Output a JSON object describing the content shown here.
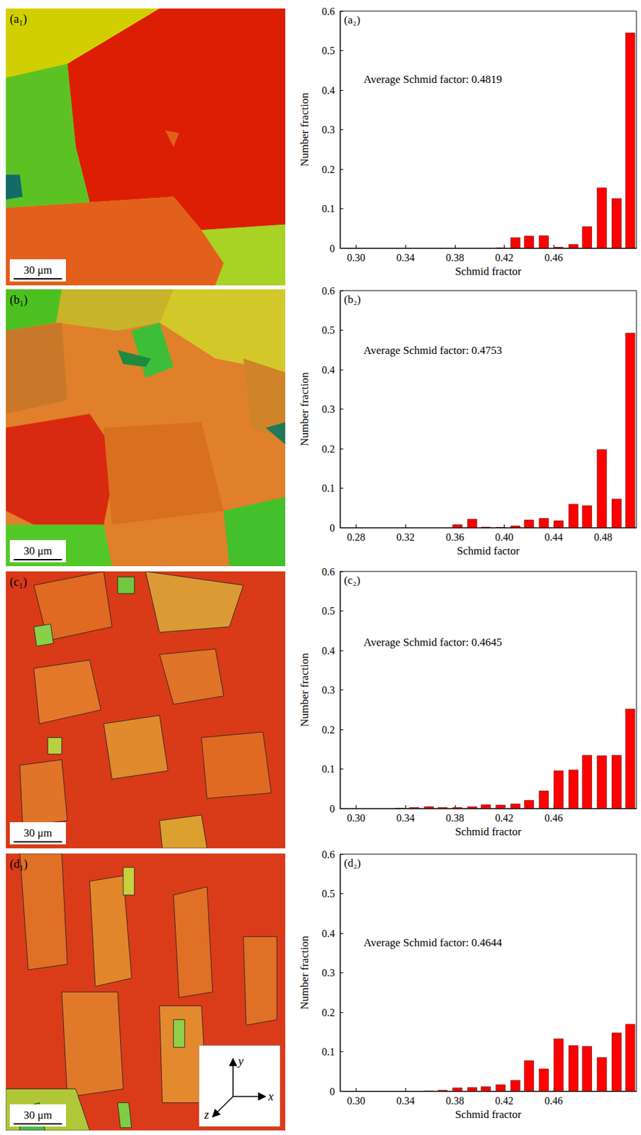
{
  "maps": [
    {
      "label": "(a₁)",
      "scale_bar": "30 μm"
    },
    {
      "label": "(b₁)",
      "scale_bar": "30 μm"
    },
    {
      "label": "(c₁)",
      "scale_bar": "30 μm"
    },
    {
      "label": "(d₁)",
      "scale_bar": "30 μm"
    }
  ],
  "axes_triad": [
    "x",
    "y",
    "z"
  ],
  "chart_data": [
    {
      "type": "bar",
      "title": "(a₂)",
      "annotations": [
        "Average Schmid factor: 0.4819"
      ],
      "x_label": "Schmid fractor",
      "y_label": "Number fraction",
      "x": [
        0.417,
        0.429,
        0.44,
        0.452,
        0.464,
        0.476,
        0.487,
        0.499,
        0.511,
        0.522
      ],
      "values": [
        0.001,
        0.027,
        0.031,
        0.032,
        0.003,
        0.01,
        0.055,
        0.153,
        0.126,
        0.545
      ],
      "color": "#ff0000",
      "xlim": [
        0.287,
        0.527
      ],
      "xticks": [
        {
          "value": 0.3,
          "label": "0.30"
        },
        0.34,
        0.38,
        0.42,
        0.46
      ],
      "ylim": [
        0,
        0.6
      ],
      "yticks": [
        0,
        0.1,
        0.2,
        0.3,
        0.4,
        0.5,
        0.6
      ],
      "grid": false
    },
    {
      "type": "bar",
      "title": "(b₂)",
      "annotations": [
        "Average Schmid factor: 0.4753"
      ],
      "x_label": "Schmid factor",
      "y_label": "Number fraction",
      "x": [
        0.362,
        0.374,
        0.385,
        0.397,
        0.409,
        0.42,
        0.432,
        0.444,
        0.456,
        0.467,
        0.479,
        0.491,
        0.502
      ],
      "values": [
        0.008,
        0.022,
        0.002,
        0.001,
        0.005,
        0.02,
        0.024,
        0.018,
        0.06,
        0.056,
        0.198,
        0.073,
        0.493
      ],
      "color": "#ff0000",
      "xlim": [
        0.267,
        0.507
      ],
      "xticks": [
        0.28,
        0.32,
        0.36,
        {
          "value": 0.4,
          "label": "0.40"
        },
        0.44,
        0.48
      ],
      "ylim": [
        0,
        0.6
      ],
      "yticks": [
        0,
        0.1,
        0.2,
        0.3,
        0.4,
        0.5,
        0.6
      ],
      "grid": false
    },
    {
      "type": "bar",
      "title": "(c₂)",
      "annotations": [
        "Average Schmid factor: 0.4645"
      ],
      "x_label": "Schmid fractor",
      "y_label": "Number fraction",
      "x": [
        0.335,
        0.347,
        0.359,
        0.37,
        0.382,
        0.394,
        0.405,
        0.417,
        0.429,
        0.44,
        0.452,
        0.464,
        0.476,
        0.487,
        0.499,
        0.511,
        0.522
      ],
      "values": [
        0.001,
        0.003,
        0.005,
        0.003,
        0.003,
        0.005,
        0.01,
        0.009,
        0.012,
        0.021,
        0.045,
        0.096,
        0.098,
        0.135,
        0.134,
        0.135,
        0.252
      ],
      "color": "#ff0000",
      "xlim": [
        0.287,
        0.527
      ],
      "xticks": [
        {
          "value": 0.3,
          "label": "0.30"
        },
        0.34,
        0.38,
        0.42,
        0.46
      ],
      "ylim": [
        0,
        0.6
      ],
      "yticks": [
        0,
        0.1,
        0.2,
        0.3,
        0.4,
        0.5,
        0.6
      ],
      "grid": false
    },
    {
      "type": "bar",
      "title": "(d₂)",
      "annotations": [
        "Average Schmid factor: 0.4644"
      ],
      "x_label": "Schmid fractor",
      "y_label": "Number fraction",
      "x": [
        0.359,
        0.37,
        0.382,
        0.394,
        0.405,
        0.417,
        0.429,
        0.44,
        0.452,
        0.464,
        0.476,
        0.487,
        0.499,
        0.511,
        0.522
      ],
      "values": [
        0.001,
        0.003,
        0.009,
        0.01,
        0.012,
        0.017,
        0.028,
        0.078,
        0.057,
        0.133,
        0.116,
        0.114,
        0.086,
        0.148,
        0.17
      ],
      "color": "#ff0000",
      "xlim": [
        0.287,
        0.527
      ],
      "xticks": [
        {
          "value": 0.3,
          "label": "0.30"
        },
        0.34,
        0.38,
        0.42,
        0.46
      ],
      "ylim": [
        0,
        0.6
      ],
      "yticks": [
        0,
        0.1,
        0.2,
        0.3,
        0.4,
        0.5,
        0.6
      ],
      "grid": false
    }
  ]
}
